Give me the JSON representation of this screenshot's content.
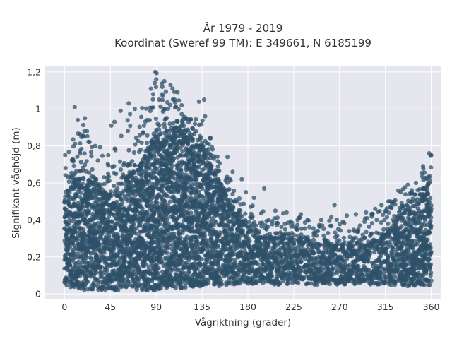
{
  "chart_data": {
    "type": "scatter",
    "title": "År 1979 - 2019",
    "subtitle": "Koordinat (Sweref 99 TM): E 349661, N 6185199",
    "xlabel": "Vågriktning (grader)",
    "ylabel": "Signifikant våghöjd (m)",
    "xlim": [
      -19,
      370
    ],
    "ylim": [
      -0.03,
      1.23
    ],
    "x_ticks": [
      0,
      45,
      90,
      135,
      180,
      225,
      270,
      315,
      360
    ],
    "x_tick_labels": [
      "0",
      "45",
      "90",
      "135",
      "180",
      "225",
      "270",
      "315",
      "360"
    ],
    "y_ticks": [
      0,
      0.2,
      0.4,
      0.6,
      0.8,
      1.0,
      1.2
    ],
    "y_tick_labels": [
      "0",
      "0,2",
      "0,4",
      "0,6",
      "0,8",
      "1",
      "1,2"
    ],
    "grid": true,
    "background_color": "#e5e6ee",
    "marker_color": "#2e5068",
    "envelope": {
      "direction": [
        0,
        10,
        20,
        30,
        45,
        60,
        75,
        90,
        100,
        110,
        120,
        135,
        150,
        165,
        180,
        195,
        210,
        225,
        240,
        255,
        270,
        285,
        300,
        315,
        330,
        345,
        360
      ],
      "dense_max": [
        0.5,
        0.62,
        0.62,
        0.6,
        0.52,
        0.62,
        0.7,
        0.85,
        0.88,
        0.9,
        0.85,
        0.78,
        0.62,
        0.45,
        0.35,
        0.3,
        0.3,
        0.29,
        0.28,
        0.26,
        0.26,
        0.26,
        0.28,
        0.32,
        0.42,
        0.5,
        0.55
      ],
      "dense_min": [
        0.05,
        0.03,
        0.02,
        0.02,
        0.02,
        0.02,
        0.02,
        0.02,
        0.03,
        0.03,
        0.03,
        0.04,
        0.04,
        0.05,
        0.05,
        0.05,
        0.05,
        0.05,
        0.05,
        0.05,
        0.05,
        0.05,
        0.05,
        0.05,
        0.04,
        0.04,
        0.04
      ],
      "outer_max": [
        0.76,
        0.86,
        0.95,
        0.86,
        0.78,
        0.95,
        1.03,
        1.2,
        1.1,
        1.1,
        0.95,
        0.97,
        0.75,
        0.6,
        0.5,
        0.45,
        0.43,
        0.45,
        0.4,
        0.38,
        0.48,
        0.4,
        0.43,
        0.5,
        0.58,
        0.6,
        0.76
      ]
    },
    "outliers": [
      {
        "x": 89,
        "y": 1.2
      },
      {
        "x": 90,
        "y": 1.16
      },
      {
        "x": 98,
        "y": 1.15
      },
      {
        "x": 104,
        "y": 1.13
      },
      {
        "x": 106,
        "y": 1.11
      },
      {
        "x": 111,
        "y": 1.09
      },
      {
        "x": 96,
        "y": 1.08
      },
      {
        "x": 87,
        "y": 1.08
      },
      {
        "x": 93,
        "y": 1.05
      },
      {
        "x": 108,
        "y": 1.05
      },
      {
        "x": 115,
        "y": 1.02
      },
      {
        "x": 137,
        "y": 1.05
      },
      {
        "x": 132,
        "y": 1.04
      },
      {
        "x": 10,
        "y": 1.01
      },
      {
        "x": 63,
        "y": 1.03
      },
      {
        "x": 55,
        "y": 0.99
      },
      {
        "x": 69,
        "y": 1.0
      },
      {
        "x": 20,
        "y": 0.95
      },
      {
        "x": 13,
        "y": 0.94
      },
      {
        "x": 138,
        "y": 0.96
      },
      {
        "x": 49,
        "y": 0.93
      },
      {
        "x": 46,
        "y": 0.91
      },
      {
        "x": 128,
        "y": 0.92
      },
      {
        "x": 22,
        "y": 0.88
      },
      {
        "x": 78,
        "y": 0.91
      },
      {
        "x": 30,
        "y": 0.8
      },
      {
        "x": 160,
        "y": 0.74
      },
      {
        "x": 165,
        "y": 0.66
      },
      {
        "x": 174,
        "y": 0.62
      },
      {
        "x": 178,
        "y": 0.55
      },
      {
        "x": 186,
        "y": 0.52
      },
      {
        "x": 196,
        "y": 0.57
      },
      {
        "x": 207,
        "y": 0.45
      },
      {
        "x": 218,
        "y": 0.44
      },
      {
        "x": 232,
        "y": 0.43
      },
      {
        "x": 252,
        "y": 0.4
      },
      {
        "x": 265,
        "y": 0.48
      },
      {
        "x": 286,
        "y": 0.43
      },
      {
        "x": 296,
        "y": 0.44
      },
      {
        "x": 302,
        "y": 0.43
      },
      {
        "x": 305,
        "y": 0.46
      },
      {
        "x": 320,
        "y": 0.5
      },
      {
        "x": 330,
        "y": 0.55
      },
      {
        "x": 337,
        "y": 0.59
      },
      {
        "x": 345,
        "y": 0.6
      },
      {
        "x": 352,
        "y": 0.69
      },
      {
        "x": 358,
        "y": 0.76
      },
      {
        "x": 360,
        "y": 0.75
      }
    ]
  }
}
